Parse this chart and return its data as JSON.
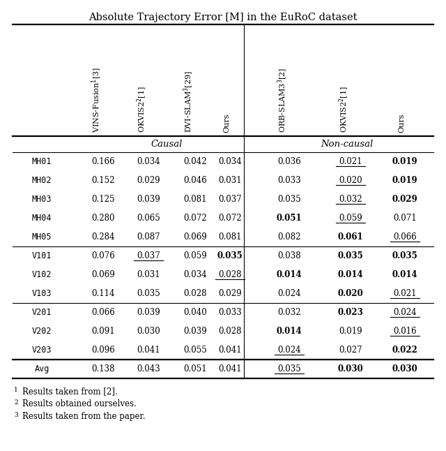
{
  "title": "Absolute Trajectory Error [M] in the EuRoC dataset",
  "col_headers": [
    "VINS-Fusion$^{1}$[3]",
    "OKVIS2$^{2}$[1]",
    "DVI-SLAM$^{3}$[29]",
    "Ours",
    "ORB-SLAM3$^{3}$[2]",
    "OKVIS2$^{2}$[1]",
    "Ours"
  ],
  "group_labels": [
    "Causal",
    "Non-causal"
  ],
  "row_labels": [
    "MH01",
    "MH02",
    "MH03",
    "MH04",
    "MH05",
    "V101",
    "V102",
    "V103",
    "V201",
    "V202",
    "V203",
    "Avg"
  ],
  "data": [
    [
      "0.166",
      "0.034",
      "0.042",
      "0.034",
      "0.036",
      "0.021",
      "0.019"
    ],
    [
      "0.152",
      "0.029",
      "0.046",
      "0.031",
      "0.033",
      "0.020",
      "0.019"
    ],
    [
      "0.125",
      "0.039",
      "0.081",
      "0.037",
      "0.035",
      "0.032",
      "0.029"
    ],
    [
      "0.280",
      "0.065",
      "0.072",
      "0.072",
      "0.051",
      "0.059",
      "0.071"
    ],
    [
      "0.284",
      "0.087",
      "0.069",
      "0.081",
      "0.082",
      "0.061",
      "0.066"
    ],
    [
      "0.076",
      "0.037",
      "0.059",
      "0.035",
      "0.038",
      "0.035",
      "0.035"
    ],
    [
      "0.069",
      "0.031",
      "0.034",
      "0.028",
      "0.014",
      "0.014",
      "0.014"
    ],
    [
      "0.114",
      "0.035",
      "0.028",
      "0.029",
      "0.024",
      "0.020",
      "0.021"
    ],
    [
      "0.066",
      "0.039",
      "0.040",
      "0.033",
      "0.032",
      "0.023",
      "0.024"
    ],
    [
      "0.091",
      "0.030",
      "0.039",
      "0.028",
      "0.014",
      "0.019",
      "0.016"
    ],
    [
      "0.096",
      "0.041",
      "0.055",
      "0.041",
      "0.024",
      "0.027",
      "0.022"
    ],
    [
      "0.138",
      "0.043",
      "0.051",
      "0.041",
      "0.035",
      "0.030",
      "0.030"
    ]
  ],
  "bold": [
    [
      false,
      false,
      false,
      false,
      false,
      false,
      true
    ],
    [
      false,
      false,
      false,
      false,
      false,
      false,
      true
    ],
    [
      false,
      false,
      false,
      false,
      false,
      false,
      true
    ],
    [
      false,
      false,
      false,
      false,
      true,
      false,
      false
    ],
    [
      false,
      false,
      false,
      false,
      false,
      true,
      false
    ],
    [
      false,
      false,
      false,
      true,
      false,
      true,
      true
    ],
    [
      false,
      false,
      false,
      false,
      true,
      true,
      true
    ],
    [
      false,
      false,
      false,
      false,
      false,
      true,
      false
    ],
    [
      false,
      false,
      false,
      false,
      false,
      true,
      false
    ],
    [
      false,
      false,
      false,
      false,
      true,
      false,
      false
    ],
    [
      false,
      false,
      false,
      false,
      false,
      false,
      true
    ],
    [
      false,
      false,
      false,
      false,
      false,
      true,
      true
    ]
  ],
  "underline": [
    [
      false,
      false,
      false,
      false,
      false,
      true,
      false
    ],
    [
      false,
      false,
      false,
      false,
      false,
      true,
      false
    ],
    [
      false,
      false,
      false,
      false,
      false,
      true,
      false
    ],
    [
      false,
      false,
      false,
      false,
      false,
      true,
      false
    ],
    [
      false,
      false,
      false,
      false,
      false,
      false,
      true
    ],
    [
      false,
      true,
      false,
      false,
      false,
      false,
      false
    ],
    [
      false,
      false,
      false,
      true,
      false,
      false,
      false
    ],
    [
      false,
      false,
      false,
      false,
      false,
      false,
      true
    ],
    [
      false,
      false,
      false,
      false,
      false,
      false,
      true
    ],
    [
      false,
      false,
      false,
      false,
      false,
      false,
      true
    ],
    [
      false,
      false,
      false,
      false,
      true,
      false,
      false
    ],
    [
      false,
      false,
      false,
      false,
      true,
      false,
      false
    ]
  ],
  "footnotes": [
    "1  Results taken from [2].",
    "2  Results obtained ourselves.",
    "3  Results taken from the paper."
  ],
  "row_group_separators": [
    5,
    8,
    11
  ],
  "col_separator_after": 3
}
